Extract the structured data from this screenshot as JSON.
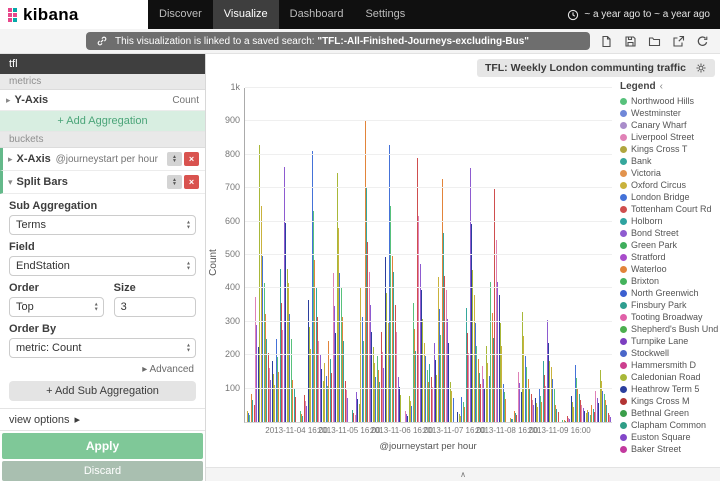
{
  "topnav": {
    "brand": "kibana",
    "items": [
      {
        "label": "Discover",
        "active": false
      },
      {
        "label": "Visualize",
        "active": true
      },
      {
        "label": "Dashboard",
        "active": false
      },
      {
        "label": "Settings",
        "active": false
      }
    ],
    "timepicker_label": "~ a year ago to ~ a year ago"
  },
  "linkbar": {
    "message_prefix": "This visualization is linked to a saved search:",
    "search_name": "\"TFL:-All-Finished-Journeys-excluding-Bus\""
  },
  "sidebar": {
    "title": "tfl",
    "metrics_header": "metrics",
    "buckets_header": "buckets",
    "y_axis": {
      "label": "Y-Axis",
      "value": "Count"
    },
    "add_aggregation": "+ Add Aggregation",
    "x_axis": {
      "label": "X-Axis",
      "value": "@journeystart per hour"
    },
    "split_bars": {
      "label": "Split Bars"
    },
    "sub_aggregation_label": "Sub Aggregation",
    "sub_aggregation_value": "Terms",
    "field_label": "Field",
    "field_value": "EndStation",
    "order_label": "Order",
    "order_value": "Top",
    "size_label": "Size",
    "size_value": "3",
    "order_by_label": "Order By",
    "order_by_value": "metric: Count",
    "advanced_label": "Advanced",
    "add_sub_aggregation": "Add Sub Aggregation",
    "view_options": "view options",
    "apply": "Apply",
    "discard": "Discard"
  },
  "viz": {
    "title": "TFL: Weekly London communting traffic"
  },
  "legend": {
    "title": "Legend",
    "items": [
      {
        "label": "Northwood Hills",
        "color": "#57c17b"
      },
      {
        "label": "Westminster",
        "color": "#6f87d8"
      },
      {
        "label": "Canary Wharf",
        "color": "#a98cca"
      },
      {
        "label": "Liverpool Street",
        "color": "#e081b6"
      },
      {
        "label": "Kings Cross T",
        "color": "#b0a63f"
      },
      {
        "label": "Bank",
        "color": "#35a79c"
      },
      {
        "label": "Victoria",
        "color": "#e2934d"
      },
      {
        "label": "Oxford Circus",
        "color": "#c9b23c"
      },
      {
        "label": "London Bridge",
        "color": "#4472d8"
      },
      {
        "label": "Tottenham Court Rd",
        "color": "#cf4e4e"
      },
      {
        "label": "Holborn",
        "color": "#2fa3a0"
      },
      {
        "label": "Bond Street",
        "color": "#8e5bd0"
      },
      {
        "label": "Green Park",
        "color": "#3fae5c"
      },
      {
        "label": "Stratford",
        "color": "#a84ccb"
      },
      {
        "label": "Waterloo",
        "color": "#e2843a"
      },
      {
        "label": "Brixton",
        "color": "#44b35c"
      },
      {
        "label": "North Greenwich",
        "color": "#3b5fd0"
      },
      {
        "label": "Finsbury Park",
        "color": "#2e9e8f"
      },
      {
        "label": "Tooting Broadway",
        "color": "#e060a8"
      },
      {
        "label": "Shepherd's Bush Und",
        "color": "#4cae4f"
      },
      {
        "label": "Turnpike Lane",
        "color": "#7d3fc0"
      },
      {
        "label": "Stockwell",
        "color": "#4a66c9"
      },
      {
        "label": "Hammersmith D",
        "color": "#cc3f8e"
      },
      {
        "label": "Caledonian Road",
        "color": "#a8b839"
      },
      {
        "label": "Heathrow Term 5",
        "color": "#2b3f9e"
      },
      {
        "label": "Kings Cross M",
        "color": "#b23434"
      },
      {
        "label": "Bethnal Green",
        "color": "#3a9e4a"
      },
      {
        "label": "Clapham Common",
        "color": "#2f9e86"
      },
      {
        "label": "Euston Square",
        "color": "#8347c9"
      },
      {
        "label": "Baker Street",
        "color": "#c2399e"
      }
    ]
  },
  "icons": {
    "caret_right": "▸",
    "caret_down": "▾",
    "move_up": "▲",
    "move_down": "▼",
    "remove": "×",
    "select_up": "▲",
    "select_down": "▼",
    "legend_toggle": "‹",
    "collapse": "∧",
    "plus": "+"
  },
  "chart_data": {
    "type": "bar",
    "title": "TFL: Weekly London communting traffic",
    "xlabel": "@journeystart per hour",
    "ylabel": "Count",
    "ylim": [
      0,
      1000
    ],
    "grid": true,
    "legend_position": "right",
    "y_ticks": [
      {
        "value": 100,
        "label": "100"
      },
      {
        "value": 200,
        "label": "200"
      },
      {
        "value": 300,
        "label": "300"
      },
      {
        "value": 400,
        "label": "400"
      },
      {
        "value": 500,
        "label": "500"
      },
      {
        "value": 600,
        "label": "600"
      },
      {
        "value": 700,
        "label": "700"
      },
      {
        "value": 800,
        "label": "800"
      },
      {
        "value": 900,
        "label": "900"
      },
      {
        "value": 1000,
        "label": "1k"
      }
    ],
    "x_tick_labels": [
      "2013-11-04 16:00",
      "2013-11-05 16:00",
      "2013-11-06 16:00",
      "2013-11-07 16:00",
      "2013-11-08 16:00",
      "2013-11-09 16:00"
    ],
    "days": [
      {
        "date": "2013-11-04",
        "hourly": [
          33,
          83,
          374,
          830,
          415,
          208,
          183,
          249,
          457,
          764,
          415,
          125
        ]
      },
      {
        "date": "2013-11-05",
        "hourly": [
          32,
          81,
          365,
          810,
          405,
          203,
          178,
          243,
          446,
          745,
          405,
          122
        ]
      },
      {
        "date": "2013-11-06",
        "hourly": [
          36,
          90,
          405,
          900,
          450,
          225,
          198,
          270,
          495,
          828,
          450,
          135
        ]
      },
      {
        "date": "2013-11-07",
        "hourly": [
          32,
          79,
          356,
          790,
          395,
          198,
          174,
          237,
          435,
          727,
          395,
          119
        ]
      },
      {
        "date": "2013-11-08",
        "hourly": [
          30,
          76,
          342,
          760,
          380,
          190,
          167,
          228,
          418,
          699,
          380,
          114
        ]
      },
      {
        "date": "2013-11-09",
        "hourly": [
          13,
          33,
          149,
          330,
          165,
          83,
          73,
          99,
          182,
          304,
          165,
          50
        ]
      },
      {
        "date": "2013-11-10",
        "hourly": [
          7,
          17,
          77,
          170,
          85,
          43,
          37,
          51,
          94,
          156,
          85,
          26
        ]
      }
    ],
    "split_ratios": [
      1,
      0.78,
      0.6
    ],
    "bar_palette": [
      "#c9b23c",
      "#4472d8",
      "#57c17b",
      "#e2843a",
      "#35a79c",
      "#cf4e4e",
      "#e081b6",
      "#8e5bd0",
      "#2b3f9e",
      "#a8b839"
    ]
  }
}
